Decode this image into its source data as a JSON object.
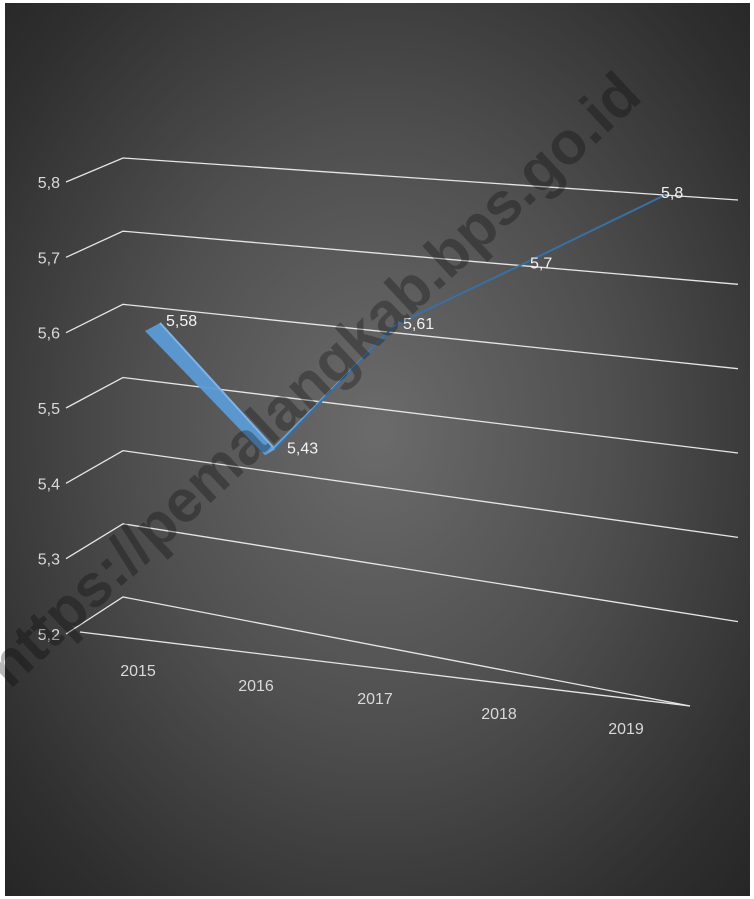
{
  "chart_data": {
    "type": "line",
    "style": "3d-line",
    "categories": [
      "2015",
      "2016",
      "2017",
      "2018",
      "2019"
    ],
    "series": [
      {
        "values": [
          5.58,
          5.43,
          5.61,
          5.7,
          5.8
        ]
      }
    ],
    "data_labels": [
      "5,58",
      "5,43",
      "5,61",
      "5,7",
      "5,8"
    ],
    "y_ticks": [
      "5,2",
      "5,3",
      "5,4",
      "5,5",
      "5,6",
      "5,7",
      "5,8"
    ],
    "ylim": [
      5.2,
      5.8
    ],
    "grid": true,
    "legend": "none",
    "colors": {
      "background": "#4f4f4f",
      "line": "#5b9bd5",
      "line_dark": "#2e5f8f",
      "grid": "#e6e6e6",
      "text": "#d9d9d9"
    }
  },
  "watermark": "https://pemalangkab.bps.go.id"
}
